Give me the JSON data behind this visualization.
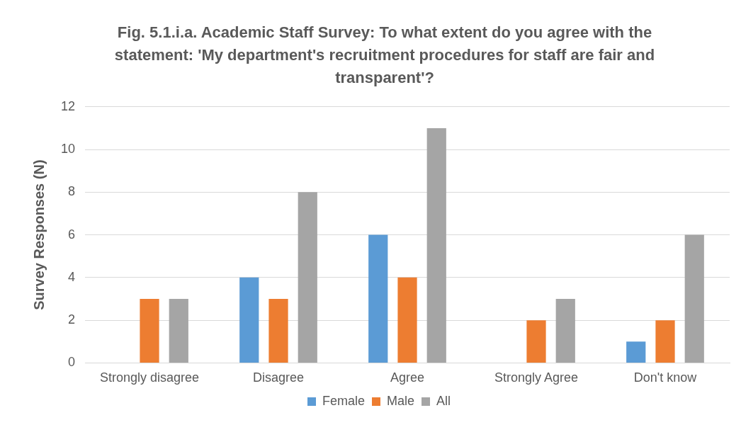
{
  "chart_data": {
    "type": "bar",
    "title": "Fig. 5.1.i.a. Academic Staff Survey: To what extent do you agree with the statement: 'My department's recruitment procedures for staff are fair and transparent'?",
    "ylabel": "Survey Responses (N)",
    "categories": [
      "Strongly disagree",
      "Disagree",
      "Agree",
      "Strongly Agree",
      "Don't know"
    ],
    "series": [
      {
        "name": "Female",
        "color": "#5b9bd5",
        "values": [
          0,
          4,
          6,
          0,
          1
        ]
      },
      {
        "name": "Male",
        "color": "#ed7d31",
        "values": [
          3,
          3,
          4,
          2,
          2
        ]
      },
      {
        "name": "All",
        "color": "#a5a5a5",
        "values": [
          3,
          8,
          11,
          3,
          6
        ]
      }
    ],
    "ylim": [
      0,
      12
    ],
    "yticks": [
      0,
      2,
      4,
      6,
      8,
      10,
      12
    ],
    "grid": "y",
    "legend": "bottom"
  }
}
